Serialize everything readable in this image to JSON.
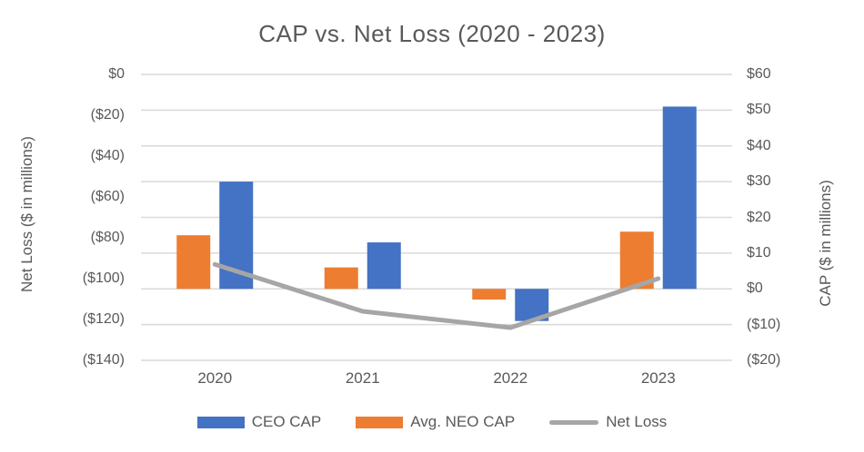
{
  "title": "CAP vs. Net Loss (2020 - 2023)",
  "colors": {
    "text": "#595959",
    "background": "#FFFFFF",
    "gridline": "#D9D9D9",
    "ceo_cap_blue": "#4472C4",
    "neo_cap_orange": "#ED7D31",
    "net_loss_gray": "#A6A6A6"
  },
  "chart_data": {
    "type": "combo-bar-line",
    "categories": [
      "2020",
      "2021",
      "2022",
      "2023"
    ],
    "series": [
      {
        "name": "CEO CAP",
        "type": "bar",
        "axis": "right",
        "color": "#4472C4",
        "bar_slot": 1,
        "values": [
          30,
          13,
          -9,
          51
        ]
      },
      {
        "name": "Avg. NEO CAP",
        "type": "bar",
        "axis": "right",
        "color": "#ED7D31",
        "bar_slot": 0,
        "values": [
          15,
          6,
          -3,
          16
        ]
      },
      {
        "name": "Net Loss",
        "type": "line",
        "axis": "left",
        "color": "#A6A6A6",
        "values": [
          -93,
          -116,
          -124,
          -100
        ]
      }
    ],
    "left_axis": {
      "title": "Net Loss ($ in millions)",
      "max": 0,
      "min": -140,
      "step": 20,
      "tick_labels": [
        "$0",
        "($20)",
        "($40)",
        "($60)",
        "($80)",
        "($100)",
        "($120)",
        "($140)"
      ]
    },
    "right_axis": {
      "title": "CAP ($ in millions)",
      "max": 60,
      "min": -20,
      "step": 10,
      "tick_labels": [
        "$60",
        "$50",
        "$40",
        "$30",
        "$20",
        "$10",
        "$0",
        "($10)",
        "($20)"
      ]
    },
    "grid": {
      "show": true,
      "aligned_to": "right_axis",
      "orientation": "horizontal"
    },
    "legend_position": "bottom"
  }
}
